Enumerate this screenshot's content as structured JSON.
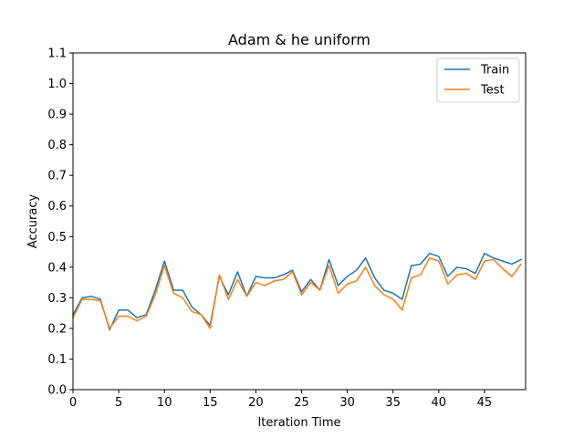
{
  "chart_data": {
    "type": "line",
    "title": "Adam & he uniform",
    "xlabel": "Iteration Time",
    "ylabel": "Accuracy",
    "xlim": [
      0,
      49.5
    ],
    "ylim": [
      0.0,
      1.1
    ],
    "xticks": [
      0,
      5,
      10,
      15,
      20,
      25,
      30,
      35,
      40,
      45
    ],
    "xtick_labels": [
      "0",
      "5",
      "10",
      "15",
      "20",
      "25",
      "30",
      "35",
      "40",
      "45"
    ],
    "yticks": [
      0.0,
      0.1,
      0.2,
      0.3,
      0.4,
      0.5,
      0.6,
      0.7,
      0.8,
      0.9,
      1.0,
      1.1
    ],
    "ytick_labels": [
      "0.0",
      "0.1",
      "0.2",
      "0.3",
      "0.4",
      "0.5",
      "0.6",
      "0.7",
      "0.8",
      "0.9",
      "1.0",
      "1.1"
    ],
    "grid": false,
    "legend_position": "top-right",
    "x": [
      0,
      1,
      2,
      3,
      4,
      5,
      6,
      7,
      8,
      9,
      10,
      11,
      12,
      13,
      14,
      15,
      16,
      17,
      18,
      19,
      20,
      21,
      22,
      23,
      24,
      25,
      26,
      27,
      28,
      29,
      30,
      31,
      32,
      33,
      34,
      35,
      36,
      37,
      38,
      39,
      40,
      41,
      42,
      43,
      44,
      45,
      46,
      47,
      48,
      49
    ],
    "series": [
      {
        "name": "Train",
        "color": "#1f77b4",
        "values": [
          0.245,
          0.3,
          0.305,
          0.295,
          0.195,
          0.26,
          0.26,
          0.235,
          0.245,
          0.325,
          0.42,
          0.325,
          0.325,
          0.27,
          0.245,
          0.21,
          0.37,
          0.31,
          0.385,
          0.305,
          0.37,
          0.365,
          0.365,
          0.375,
          0.39,
          0.32,
          0.36,
          0.325,
          0.425,
          0.34,
          0.37,
          0.39,
          0.43,
          0.365,
          0.325,
          0.315,
          0.295,
          0.405,
          0.41,
          0.445,
          0.435,
          0.37,
          0.4,
          0.395,
          0.38,
          0.445,
          0.43,
          0.42,
          0.41,
          0.425
        ]
      },
      {
        "name": "Test",
        "color": "#ff7f0e",
        "values": [
          0.235,
          0.295,
          0.295,
          0.29,
          0.2,
          0.24,
          0.24,
          0.225,
          0.24,
          0.31,
          0.405,
          0.315,
          0.3,
          0.255,
          0.245,
          0.2,
          0.375,
          0.295,
          0.36,
          0.305,
          0.35,
          0.34,
          0.355,
          0.36,
          0.385,
          0.31,
          0.35,
          0.325,
          0.405,
          0.315,
          0.345,
          0.355,
          0.4,
          0.34,
          0.31,
          0.295,
          0.26,
          0.365,
          0.375,
          0.43,
          0.42,
          0.345,
          0.375,
          0.38,
          0.36,
          0.42,
          0.425,
          0.395,
          0.37,
          0.41
        ]
      }
    ]
  }
}
